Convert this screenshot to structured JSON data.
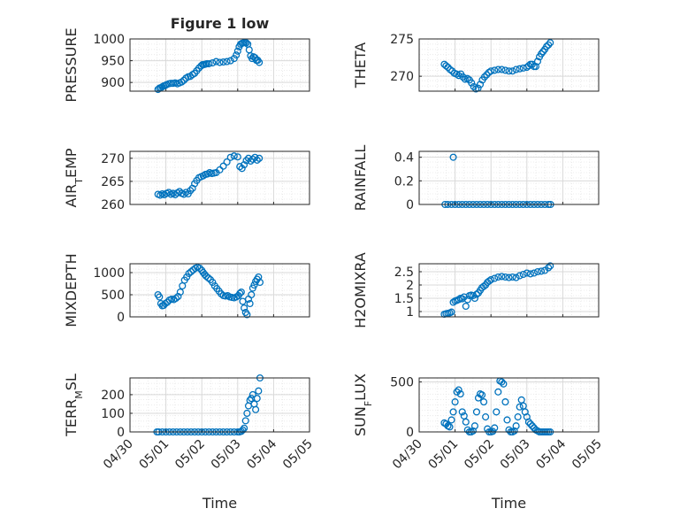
{
  "figure": {
    "title": "Figure 1 low"
  },
  "chart_data": [
    {
      "id": "pressure",
      "type": "scatter",
      "title": "Figure 1 low",
      "ylabel": "PRESSURE",
      "xlabel": "",
      "ylim": [
        880,
        1000
      ],
      "yticks": [
        900,
        950,
        1000
      ],
      "xlim": [
        0,
        5
      ],
      "grid": "on",
      "show_xticks": false,
      "x": [
        0.78,
        0.82,
        0.86,
        0.9,
        0.94,
        0.98,
        1.02,
        1.08,
        1.14,
        1.2,
        1.26,
        1.32,
        1.38,
        1.44,
        1.5,
        1.56,
        1.62,
        1.68,
        1.74,
        1.8,
        1.86,
        1.92,
        1.98,
        2.02,
        2.06,
        2.1,
        2.14,
        2.2,
        2.3,
        2.4,
        2.5,
        2.6,
        2.7,
        2.8,
        2.9,
        2.96,
        3.0,
        3.04,
        3.08,
        3.12,
        3.16,
        3.2,
        3.24,
        3.28,
        3.32,
        3.36,
        3.4,
        3.44,
        3.48,
        3.52,
        3.56,
        3.6
      ],
      "y": [
        884,
        887,
        888,
        890,
        892,
        893,
        895,
        897,
        898,
        898,
        899,
        897,
        899,
        901,
        905,
        910,
        913,
        914,
        918,
        921,
        927,
        933,
        938,
        941,
        941,
        942,
        943,
        943,
        945,
        948,
        946,
        947,
        948,
        950,
        955,
        963,
        972,
        982,
        988,
        990,
        991,
        992,
        991,
        988,
        975,
        961,
        955,
        959,
        957,
        951,
        951,
        946
      ]
    },
    {
      "id": "theta",
      "type": "scatter",
      "ylabel": "THETA",
      "xlabel": "",
      "ylim": [
        268,
        275
      ],
      "yticks": [
        270,
        275
      ],
      "xlim": [
        0,
        5
      ],
      "grid": "on",
      "show_xticks": false,
      "x": [
        0.7,
        0.75,
        0.8,
        0.86,
        0.92,
        0.98,
        1.04,
        1.1,
        1.16,
        1.22,
        1.28,
        1.34,
        1.4,
        1.46,
        1.52,
        1.58,
        1.64,
        1.7,
        1.76,
        1.82,
        1.88,
        1.94,
        2.0,
        2.1,
        2.2,
        2.3,
        2.4,
        2.5,
        2.6,
        2.7,
        2.8,
        2.9,
        3.0,
        3.05,
        3.1,
        3.15,
        3.2,
        3.25,
        3.3,
        3.35,
        3.4,
        3.45,
        3.5,
        3.55,
        3.6,
        3.65
      ],
      "y": [
        271.6,
        271.4,
        271.2,
        270.9,
        270.7,
        270.4,
        270.3,
        270.1,
        270.3,
        269.9,
        269.6,
        269.7,
        269.5,
        269.1,
        268.6,
        268.3,
        268.4,
        268.9,
        269.5,
        269.9,
        270.2,
        270.5,
        270.7,
        270.8,
        270.9,
        270.9,
        270.8,
        270.7,
        270.7,
        270.9,
        271.0,
        271.1,
        271.2,
        271.4,
        271.6,
        271.6,
        271.3,
        271.3,
        272.0,
        272.6,
        273.0,
        273.3,
        273.6,
        274.0,
        274.2,
        274.5
      ]
    },
    {
      "id": "air-temp",
      "type": "scatter",
      "ylabel": "AIR_TEMP",
      "xlabel": "",
      "ylim": [
        260,
        271.5
      ],
      "yticks": [
        260,
        265,
        270
      ],
      "xlim": [
        0,
        5
      ],
      "grid": "on",
      "show_xticks": false,
      "x": [
        0.78,
        0.84,
        0.9,
        0.96,
        1.02,
        1.08,
        1.14,
        1.2,
        1.26,
        1.32,
        1.38,
        1.44,
        1.5,
        1.56,
        1.62,
        1.68,
        1.74,
        1.8,
        1.86,
        1.92,
        1.98,
        2.04,
        2.1,
        2.16,
        2.22,
        2.28,
        2.34,
        2.4,
        2.5,
        2.6,
        2.7,
        2.8,
        2.9,
        3.0,
        3.06,
        3.12,
        3.18,
        3.24,
        3.3,
        3.36,
        3.42,
        3.48,
        3.54,
        3.6
      ],
      "y": [
        262.2,
        262.0,
        262.3,
        262.1,
        262.4,
        262.6,
        262.2,
        262.4,
        262.1,
        262.5,
        262.8,
        262.4,
        262.2,
        262.6,
        262.3,
        263.0,
        263.5,
        264.5,
        265.2,
        265.8,
        266.0,
        266.2,
        266.5,
        266.6,
        266.9,
        266.7,
        266.8,
        266.9,
        267.5,
        268.3,
        269.2,
        270.2,
        270.5,
        270.3,
        268.2,
        267.8,
        268.6,
        269.5,
        270.0,
        269.4,
        269.8,
        270.2,
        269.6,
        270.0
      ]
    },
    {
      "id": "rainfall",
      "type": "scatter",
      "ylabel": "RAINFALL",
      "xlabel": "",
      "ylim": [
        0,
        0.45
      ],
      "yticks": [
        0,
        0.2,
        0.4
      ],
      "xlim": [
        0,
        5
      ],
      "grid": "on",
      "show_xticks": false,
      "x": [
        0.72,
        0.8,
        0.9,
        0.95,
        1.0,
        1.1,
        1.2,
        1.3,
        1.4,
        1.5,
        1.6,
        1.7,
        1.8,
        1.9,
        2.0,
        2.1,
        2.2,
        2.3,
        2.4,
        2.5,
        2.6,
        2.7,
        2.8,
        2.9,
        3.0,
        3.1,
        3.2,
        3.3,
        3.4,
        3.5,
        3.6,
        3.66
      ],
      "y": [
        0,
        0,
        0,
        0.4,
        0,
        0,
        0,
        0,
        0,
        0,
        0,
        0,
        0,
        0,
        0,
        0,
        0,
        0,
        0,
        0,
        0,
        0,
        0,
        0,
        0,
        0,
        0,
        0,
        0,
        0,
        0,
        0
      ]
    },
    {
      "id": "mixdepth",
      "type": "scatter",
      "ylabel": "MIXDEPTH",
      "xlabel": "",
      "ylim": [
        0,
        1200
      ],
      "yticks": [
        0,
        500,
        1000
      ],
      "xlim": [
        0,
        5
      ],
      "grid": "on",
      "show_xticks": false,
      "x": [
        0.78,
        0.82,
        0.86,
        0.9,
        0.94,
        0.98,
        1.04,
        1.1,
        1.16,
        1.22,
        1.28,
        1.34,
        1.4,
        1.46,
        1.52,
        1.58,
        1.64,
        1.7,
        1.76,
        1.82,
        1.88,
        1.94,
        2.0,
        2.04,
        2.08,
        2.12,
        2.18,
        2.24,
        2.3,
        2.36,
        2.42,
        2.48,
        2.54,
        2.6,
        2.66,
        2.72,
        2.78,
        2.84,
        2.9,
        2.96,
        3.02,
        3.06,
        3.1,
        3.14,
        3.18,
        3.22,
        3.26,
        3.3,
        3.34,
        3.38,
        3.42,
        3.46,
        3.5,
        3.54,
        3.58,
        3.62
      ],
      "y": [
        500,
        450,
        300,
        250,
        260,
        300,
        330,
        380,
        400,
        390,
        420,
        460,
        560,
        700,
        830,
        900,
        980,
        1020,
        1060,
        1100,
        1120,
        1100,
        1050,
        1000,
        960,
        920,
        880,
        840,
        780,
        700,
        640,
        580,
        520,
        480,
        470,
        480,
        450,
        440,
        430,
        450,
        480,
        530,
        560,
        350,
        200,
        100,
        50,
        400,
        300,
        500,
        650,
        720,
        800,
        850,
        900,
        780
      ]
    },
    {
      "id": "h2omixra",
      "type": "scatter",
      "ylabel": "H2OMIXRA",
      "xlabel": "",
      "ylim": [
        0.8,
        2.8
      ],
      "yticks": [
        1,
        1.5,
        2,
        2.5
      ],
      "xlim": [
        0,
        5
      ],
      "grid": "on",
      "show_xticks": false,
      "x": [
        0.7,
        0.75,
        0.8,
        0.85,
        0.9,
        0.95,
        1.0,
        1.05,
        1.1,
        1.15,
        1.2,
        1.25,
        1.3,
        1.35,
        1.4,
        1.45,
        1.5,
        1.55,
        1.6,
        1.65,
        1.7,
        1.75,
        1.8,
        1.85,
        1.9,
        1.95,
        2.0,
        2.1,
        2.2,
        2.3,
        2.4,
        2.5,
        2.6,
        2.7,
        2.8,
        2.9,
        3.0,
        3.1,
        3.2,
        3.3,
        3.4,
        3.5,
        3.6,
        3.65
      ],
      "y": [
        0.9,
        0.92,
        0.93,
        0.95,
        0.98,
        1.35,
        1.4,
        1.42,
        1.45,
        1.5,
        1.48,
        1.55,
        1.2,
        1.45,
        1.6,
        1.62,
        1.6,
        1.5,
        1.65,
        1.7,
        1.8,
        1.9,
        1.95,
        2.0,
        2.1,
        2.15,
        2.2,
        2.25,
        2.3,
        2.32,
        2.3,
        2.28,
        2.3,
        2.28,
        2.35,
        2.4,
        2.45,
        2.42,
        2.45,
        2.5,
        2.52,
        2.55,
        2.65,
        2.72
      ]
    },
    {
      "id": "terr-msl",
      "type": "scatter",
      "ylabel": "TERR_MSL",
      "xlabel": "Time",
      "ylim": [
        0,
        290
      ],
      "yticks": [
        0,
        100,
        200
      ],
      "xlim": [
        0,
        5
      ],
      "grid": "on",
      "show_xticks": true,
      "xticklabels": [
        "04/30",
        "05/01",
        "05/02",
        "05/03",
        "05/04",
        "05/05"
      ],
      "x": [
        0.75,
        0.8,
        0.9,
        1.0,
        1.1,
        1.2,
        1.3,
        1.4,
        1.5,
        1.6,
        1.7,
        1.8,
        1.9,
        2.0,
        2.1,
        2.2,
        2.3,
        2.4,
        2.5,
        2.6,
        2.7,
        2.8,
        2.9,
        3.0,
        3.05,
        3.1,
        3.14,
        3.18,
        3.22,
        3.26,
        3.3,
        3.34,
        3.38,
        3.42,
        3.46,
        3.5,
        3.54,
        3.58,
        3.62
      ],
      "y": [
        0,
        0,
        0,
        0,
        0,
        0,
        0,
        0,
        0,
        0,
        0,
        0,
        0,
        0,
        0,
        0,
        0,
        0,
        0,
        0,
        0,
        0,
        0,
        0,
        0,
        3,
        10,
        20,
        60,
        100,
        140,
        170,
        180,
        200,
        150,
        120,
        180,
        220,
        290
      ]
    },
    {
      "id": "sun-flux",
      "type": "scatter",
      "ylabel": "SUN_FLUX",
      "xlabel": "Time",
      "ylim": [
        0,
        540
      ],
      "yticks": [
        0,
        500
      ],
      "xlim": [
        0,
        5
      ],
      "grid": "on",
      "show_xticks": true,
      "xticklabels": [
        "04/30",
        "05/01",
        "05/02",
        "05/03",
        "05/04",
        "05/05"
      ],
      "x": [
        0.7,
        0.75,
        0.8,
        0.85,
        0.9,
        0.95,
        1.0,
        1.05,
        1.1,
        1.15,
        1.2,
        1.25,
        1.3,
        1.35,
        1.4,
        1.45,
        1.5,
        1.55,
        1.6,
        1.65,
        1.7,
        1.75,
        1.8,
        1.85,
        1.9,
        1.95,
        2.0,
        2.05,
        2.1,
        2.15,
        2.2,
        2.25,
        2.3,
        2.35,
        2.4,
        2.45,
        2.5,
        2.55,
        2.6,
        2.65,
        2.7,
        2.75,
        2.8,
        2.85,
        2.9,
        2.95,
        3.0,
        3.05,
        3.1,
        3.15,
        3.2,
        3.25,
        3.3,
        3.35,
        3.4,
        3.45,
        3.5,
        3.55,
        3.6,
        3.65
      ],
      "y": [
        90,
        80,
        60,
        50,
        120,
        200,
        300,
        400,
        420,
        380,
        200,
        160,
        100,
        20,
        0,
        0,
        10,
        60,
        200,
        340,
        380,
        370,
        300,
        150,
        30,
        0,
        0,
        5,
        40,
        200,
        400,
        510,
        500,
        480,
        300,
        120,
        20,
        0,
        0,
        10,
        60,
        150,
        250,
        320,
        260,
        200,
        150,
        100,
        80,
        60,
        40,
        20,
        10,
        0,
        0,
        0,
        0,
        0,
        0,
        0
      ]
    }
  ]
}
